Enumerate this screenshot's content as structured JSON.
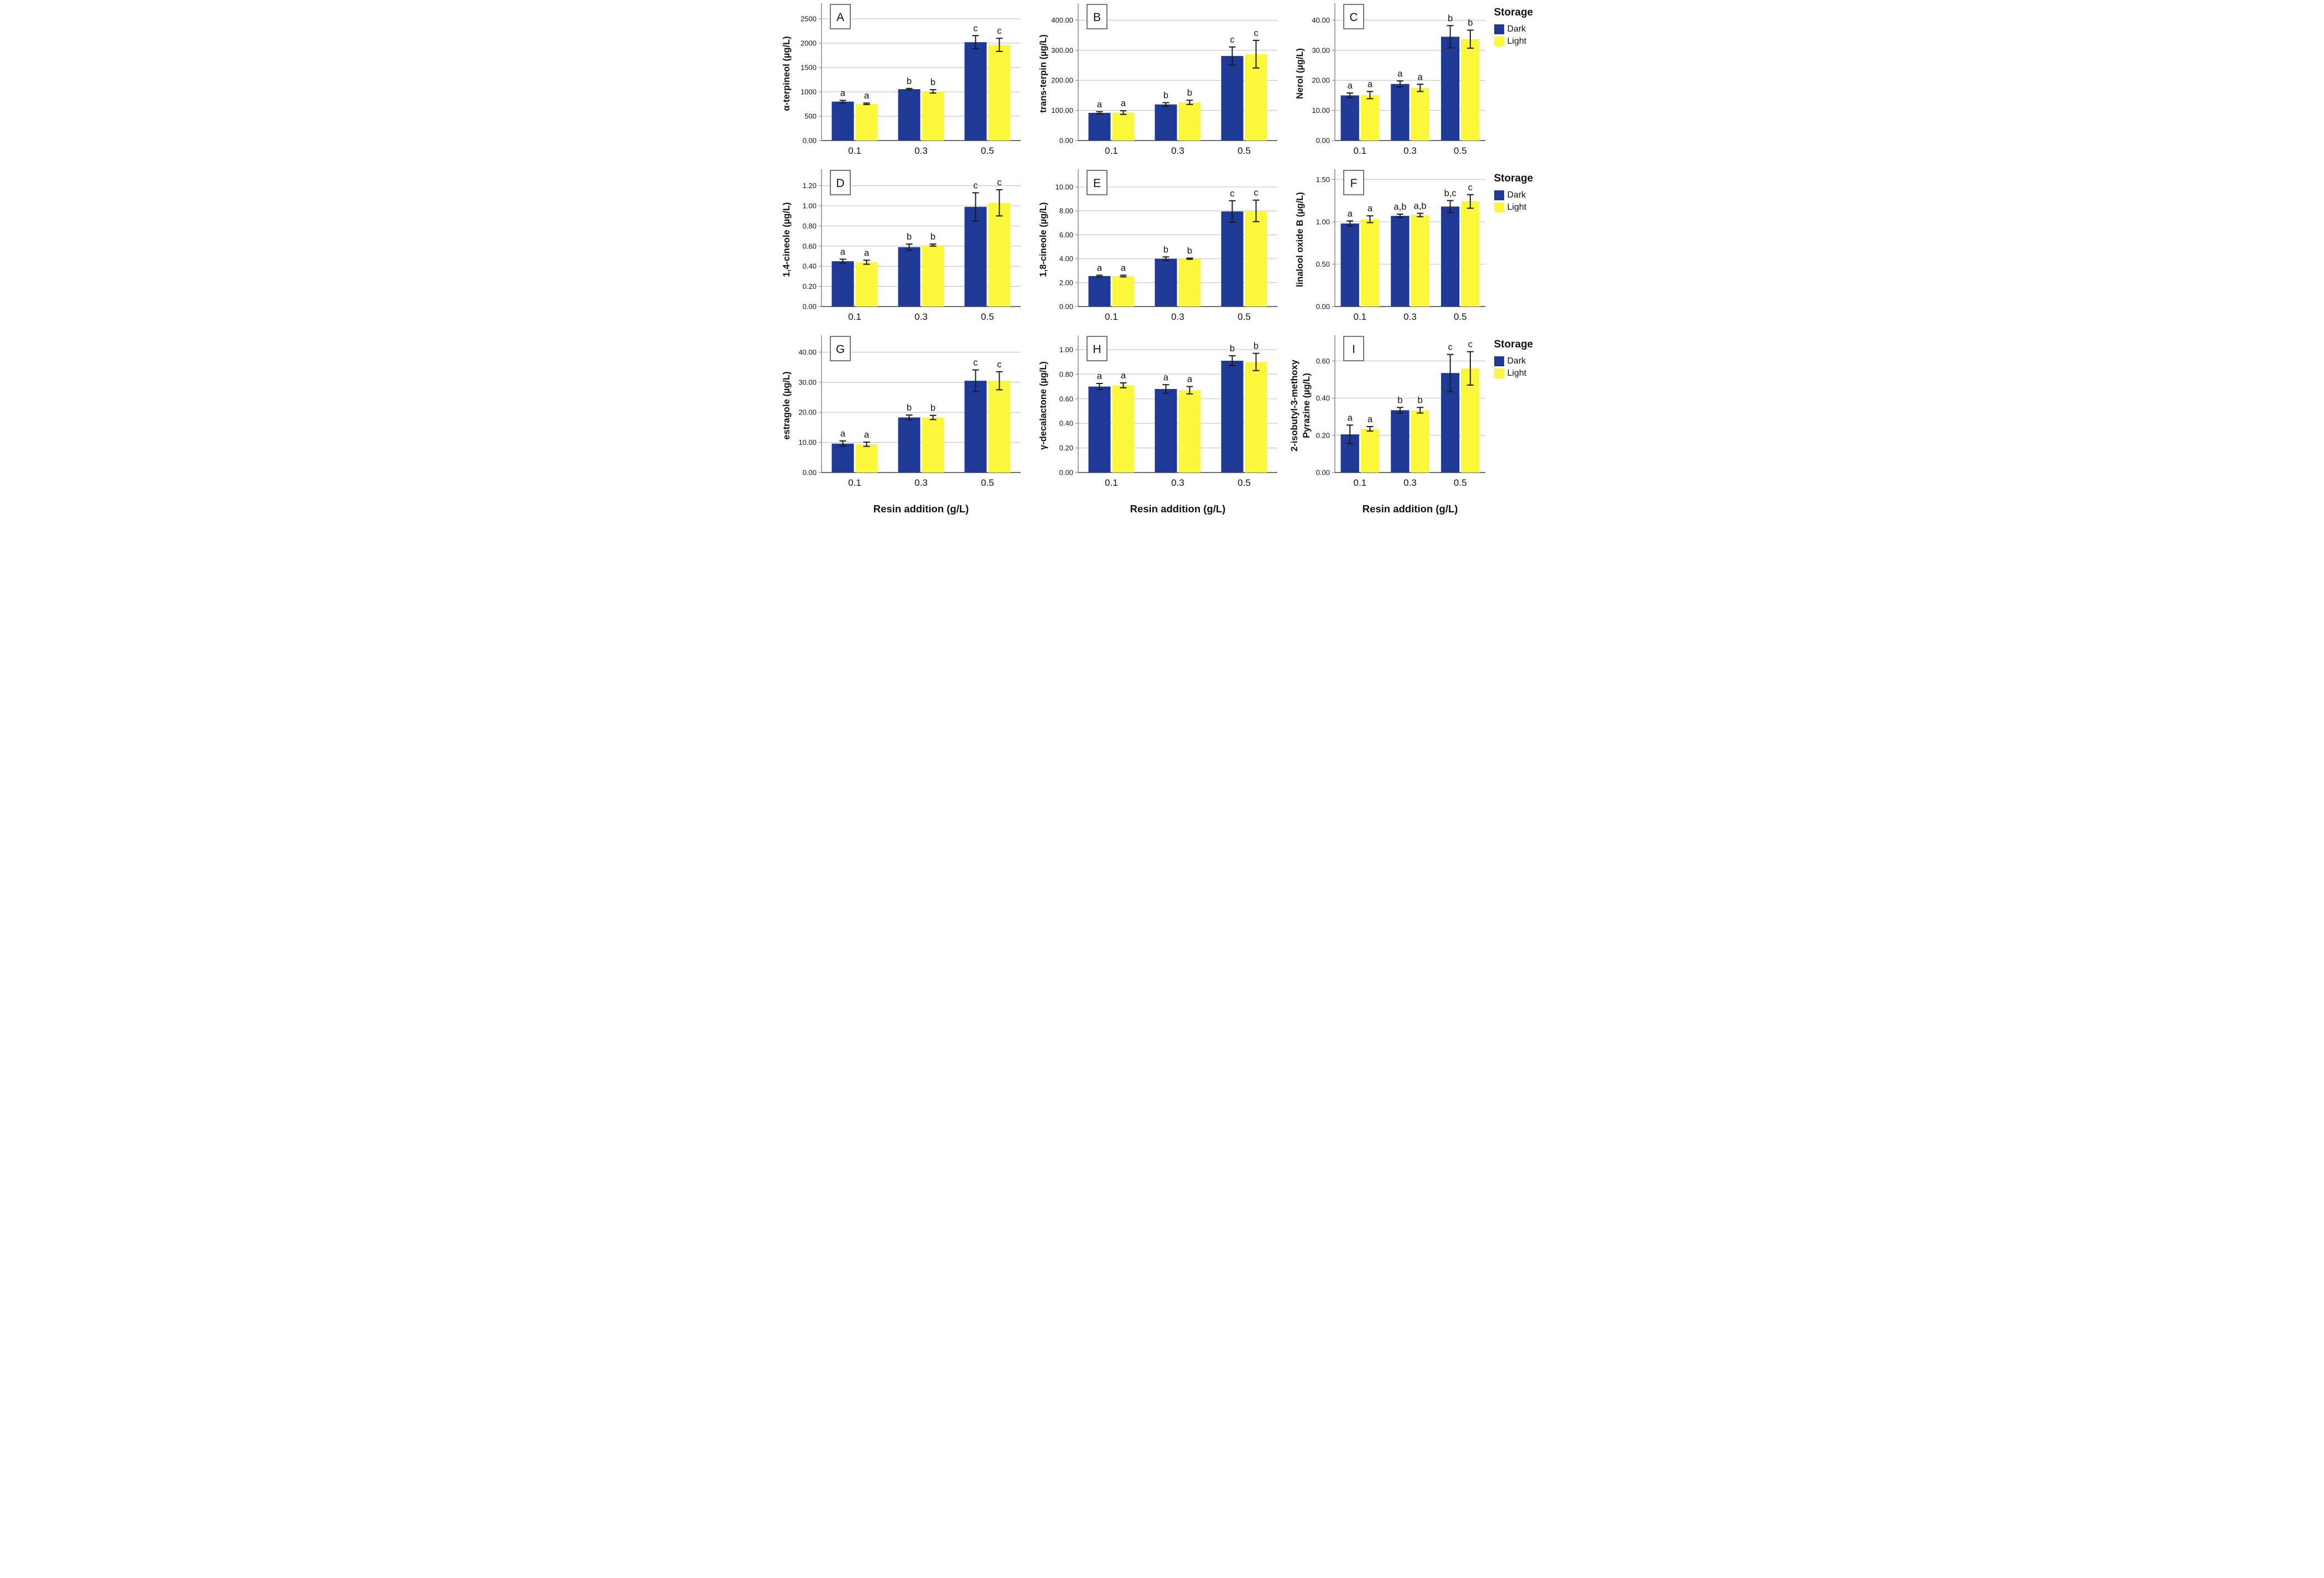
{
  "legend": {
    "title": "Storage",
    "items": [
      {
        "key": "dark",
        "label": "Dark",
        "color": "#1e3a96"
      },
      {
        "key": "light",
        "label": "Light",
        "color": "#fbf73a"
      }
    ]
  },
  "x_axis_label": "Resin addition (g/L)",
  "colors": {
    "dark_bar": "#1e3a96",
    "light_bar": "#fbf73a",
    "gridline": "#c6c6c6",
    "axis": "#6e6e6e",
    "spine": "#8a8a8a",
    "error_bar": "#1c1c1c",
    "panel_box_border": "#555555"
  },
  "chart_data": [
    {
      "type": "bar",
      "panel": "A",
      "ylabel": "α-terpineol (µg/L)",
      "categories": [
        "0.1",
        "0.3",
        "0.5"
      ],
      "ylim": [
        0,
        2750
      ],
      "yticks": [
        {
          "value": 0,
          "label": "0.00"
        },
        {
          "value": 500,
          "label": "500"
        },
        {
          "value": 1000,
          "label": "1000"
        },
        {
          "value": 1500,
          "label": "1500"
        },
        {
          "value": 2000,
          "label": "2000"
        },
        {
          "value": 2500,
          "label": "2500"
        }
      ],
      "series": [
        {
          "name": "Dark",
          "values": [
            800,
            1055,
            2020
          ],
          "errors": [
            25,
            15,
            135
          ],
          "letters": [
            "a",
            "b",
            "c"
          ]
        },
        {
          "name": "Light",
          "values": [
            755,
            1010,
            1965
          ],
          "errors": [
            15,
            35,
            135
          ],
          "letters": [
            "a",
            "b",
            "c"
          ]
        }
      ],
      "show_legend": false,
      "xlabel": ""
    },
    {
      "type": "bar",
      "panel": "B",
      "ylabel": "trans-terpin (µg/L)",
      "categories": [
        "0.1",
        "0.3",
        "0.5"
      ],
      "ylim": [
        0,
        445
      ],
      "yticks": [
        {
          "value": 0,
          "label": "0.00"
        },
        {
          "value": 100,
          "label": "100.00"
        },
        {
          "value": 200,
          "label": "200.00"
        },
        {
          "value": 300,
          "label": "300.00"
        },
        {
          "value": 400,
          "label": "400.00"
        }
      ],
      "series": [
        {
          "name": "Dark",
          "values": [
            92,
            120,
            281
          ],
          "errors": [
            4,
            6,
            30
          ],
          "letters": [
            "a",
            "b",
            "c"
          ]
        },
        {
          "name": "Light",
          "values": [
            93,
            127,
            287
          ],
          "errors": [
            6,
            7,
            46
          ],
          "letters": [
            "a",
            "b",
            "c"
          ]
        }
      ],
      "show_legend": false,
      "xlabel": ""
    },
    {
      "type": "bar",
      "panel": "C",
      "ylabel": "Nerol (µg/L)",
      "categories": [
        "0.1",
        "0.3",
        "0.5"
      ],
      "ylim": [
        0,
        44.5
      ],
      "yticks": [
        {
          "value": 0,
          "label": "0.00"
        },
        {
          "value": 10,
          "label": "10.00"
        },
        {
          "value": 20,
          "label": "20.00"
        },
        {
          "value": 30,
          "label": "30.00"
        },
        {
          "value": 40,
          "label": "40.00"
        }
      ],
      "series": [
        {
          "name": "Dark",
          "values": [
            15.0,
            18.8,
            34.5
          ],
          "errors": [
            0.8,
            1.0,
            3.7
          ],
          "letters": [
            "a",
            "a",
            "b"
          ]
        },
        {
          "name": "Light",
          "values": [
            15.1,
            17.5,
            33.7
          ],
          "errors": [
            1.2,
            1.2,
            3.0
          ],
          "letters": [
            "a",
            "a",
            "b"
          ]
        }
      ],
      "show_legend": true,
      "xlabel": ""
    },
    {
      "type": "bar",
      "panel": "D",
      "ylabel": "1,4-cineole (µg/L)",
      "categories": [
        "0.1",
        "0.3",
        "0.5"
      ],
      "ylim": [
        0,
        1.33
      ],
      "yticks": [
        {
          "value": 0,
          "label": "0.00"
        },
        {
          "value": 0.2,
          "label": "0.20"
        },
        {
          "value": 0.4,
          "label": "0.40"
        },
        {
          "value": 0.6,
          "label": "0.60"
        },
        {
          "value": 0.8,
          "label": "0.80"
        },
        {
          "value": 1.0,
          "label": "1.00"
        },
        {
          "value": 1.2,
          "label": "1.20"
        }
      ],
      "series": [
        {
          "name": "Dark",
          "values": [
            0.45,
            0.59,
            0.99
          ],
          "errors": [
            0.02,
            0.03,
            0.14
          ],
          "letters": [
            "a",
            "b",
            "c"
          ]
        },
        {
          "name": "Light",
          "values": [
            0.44,
            0.61,
            1.03
          ],
          "errors": [
            0.02,
            0.01,
            0.13
          ],
          "letters": [
            "a",
            "b",
            "c"
          ]
        }
      ],
      "show_legend": false,
      "xlabel": ""
    },
    {
      "type": "bar",
      "panel": "E",
      "ylabel": "1,8-cineole (µg/L)",
      "categories": [
        "0.1",
        "0.3",
        "0.5"
      ],
      "ylim": [
        0,
        11.2
      ],
      "yticks": [
        {
          "value": 0,
          "label": "0.00"
        },
        {
          "value": 2,
          "label": "2.00"
        },
        {
          "value": 4,
          "label": "4.00"
        },
        {
          "value": 6,
          "label": "6.00"
        },
        {
          "value": 8,
          "label": "8.00"
        },
        {
          "value": 10,
          "label": "10.00"
        }
      ],
      "series": [
        {
          "name": "Dark",
          "values": [
            2.55,
            4.0,
            7.95
          ],
          "errors": [
            0.07,
            0.15,
            0.9
          ],
          "letters": [
            "a",
            "b",
            "c"
          ]
        },
        {
          "name": "Light",
          "values": [
            2.55,
            4.0,
            8.0
          ],
          "errors": [
            0.07,
            0.05,
            0.9
          ],
          "letters": [
            "a",
            "b",
            "c"
          ]
        }
      ],
      "show_legend": false,
      "xlabel": ""
    },
    {
      "type": "bar",
      "panel": "F",
      "ylabel": "linalool oxide B (µg/L)",
      "categories": [
        "0.1",
        "0.3",
        "0.5"
      ],
      "ylim": [
        0,
        1.58
      ],
      "yticks": [
        {
          "value": 0,
          "label": "0.00"
        },
        {
          "value": 0.5,
          "label": "0.50"
        },
        {
          "value": 1.0,
          "label": "1.00"
        },
        {
          "value": 1.5,
          "label": "1.50"
        }
      ],
      "series": [
        {
          "name": "Dark",
          "values": [
            0.98,
            1.07,
            1.18
          ],
          "errors": [
            0.03,
            0.02,
            0.07
          ],
          "letters": [
            "a",
            "a,b",
            "b,c"
          ]
        },
        {
          "name": "Light",
          "values": [
            1.03,
            1.08,
            1.24
          ],
          "errors": [
            0.04,
            0.02,
            0.08
          ],
          "letters": [
            "a",
            "a,b",
            "c"
          ]
        }
      ],
      "show_legend": true,
      "xlabel": ""
    },
    {
      "type": "bar",
      "panel": "G",
      "ylabel": "estragole (µg/L)",
      "categories": [
        "0.1",
        "0.3",
        "0.5"
      ],
      "ylim": [
        0,
        44.5
      ],
      "yticks": [
        {
          "value": 0,
          "label": "0.00"
        },
        {
          "value": 10,
          "label": "10.00"
        },
        {
          "value": 20,
          "label": "20.00"
        },
        {
          "value": 30,
          "label": "30.00"
        },
        {
          "value": 40,
          "label": "40.00"
        }
      ],
      "series": [
        {
          "name": "Dark",
          "values": [
            9.6,
            18.3,
            30.5
          ],
          "errors": [
            0.9,
            0.8,
            3.6
          ],
          "letters": [
            "a",
            "b",
            "c"
          ]
        },
        {
          "name": "Light",
          "values": [
            9.4,
            18.3,
            30.5
          ],
          "errors": [
            0.7,
            0.7,
            3.0
          ],
          "letters": [
            "a",
            "b",
            "c"
          ]
        }
      ],
      "show_legend": false,
      "xlabel": "Resin addition (g/L)"
    },
    {
      "type": "bar",
      "panel": "H",
      "ylabel": "γ-decalactone (µg/L)",
      "categories": [
        "0.1",
        "0.3",
        "0.5"
      ],
      "ylim": [
        0,
        1.09
      ],
      "yticks": [
        {
          "value": 0,
          "label": "0.00"
        },
        {
          "value": 0.2,
          "label": "0.20"
        },
        {
          "value": 0.4,
          "label": "0.40"
        },
        {
          "value": 0.6,
          "label": "0.60"
        },
        {
          "value": 0.8,
          "label": "0.80"
        },
        {
          "value": 1.0,
          "label": "1.00"
        }
      ],
      "series": [
        {
          "name": "Dark",
          "values": [
            0.7,
            0.68,
            0.91
          ],
          "errors": [
            0.025,
            0.035,
            0.04
          ],
          "letters": [
            "a",
            "a",
            "b"
          ]
        },
        {
          "name": "Light",
          "values": [
            0.71,
            0.67,
            0.9
          ],
          "errors": [
            0.02,
            0.03,
            0.07
          ],
          "letters": [
            "a",
            "a",
            "b"
          ]
        }
      ],
      "show_legend": false,
      "xlabel": "Resin addition (g/L)"
    },
    {
      "type": "bar",
      "panel": "I",
      "ylabel": "2-isobutyl-3-methoxy Pyrazine (µg/L)",
      "ylabel_lines": [
        "2-isobutyl-3-methoxy",
        "Pyrazine (µg/L)"
      ],
      "categories": [
        "0.1",
        "0.3",
        "0.5"
      ],
      "ylim": [
        0,
        0.72
      ],
      "yticks": [
        {
          "value": 0,
          "label": "0.00"
        },
        {
          "value": 0.2,
          "label": "0.20"
        },
        {
          "value": 0.4,
          "label": "0.40"
        },
        {
          "value": 0.6,
          "label": "0.60"
        }
      ],
      "series": [
        {
          "name": "Dark",
          "values": [
            0.205,
            0.335,
            0.535
          ],
          "errors": [
            0.05,
            0.015,
            0.1
          ],
          "letters": [
            "a",
            "b",
            "c"
          ]
        },
        {
          "name": "Light",
          "values": [
            0.235,
            0.335,
            0.56
          ],
          "errors": [
            0.012,
            0.015,
            0.09
          ],
          "letters": [
            "a",
            "b",
            "c"
          ]
        }
      ],
      "show_legend": true,
      "xlabel": "Resin addition (g/L)"
    }
  ]
}
